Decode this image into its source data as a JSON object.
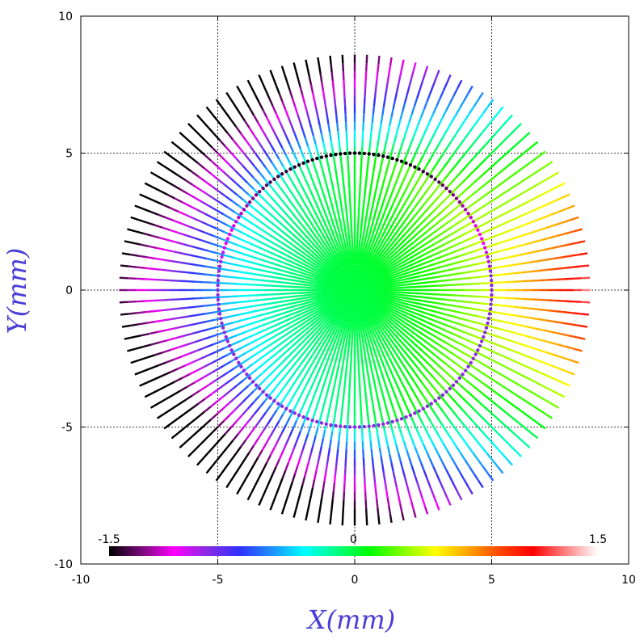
{
  "chart_data": {
    "type": "scatter",
    "title": "",
    "xlabel": "X(mm)",
    "ylabel": "Y(mm)",
    "xlim": [
      -10,
      10
    ],
    "ylim": [
      -10,
      10
    ],
    "grid": true,
    "xticks": [
      "-10",
      "-5",
      "0",
      "5",
      "10"
    ],
    "yticks": [
      "-10",
      "-5",
      "0",
      "5",
      "10"
    ],
    "rays": {
      "count": 120,
      "max_radius_mm": 8.6,
      "description_free_parameters": {
        "color_value_formula_amplitude": 1.5
      }
    },
    "circle": {
      "radius_mm": 5.0
    },
    "colorbar": {
      "min": -1.5,
      "max": 1.5,
      "tick_labels": [
        "-1.5",
        "0",
        "1.5"
      ],
      "colors": [
        "#000000",
        "#7a0a7a",
        "#ff00ff",
        "#8a2be2",
        "#3030ff",
        "#1e90ff",
        "#00ffff",
        "#00ff80",
        "#00ff00",
        "#80ff00",
        "#ffff00",
        "#ffa500",
        "#ff4500",
        "#ff0000",
        "#ff8080",
        "#ffffff"
      ]
    }
  }
}
